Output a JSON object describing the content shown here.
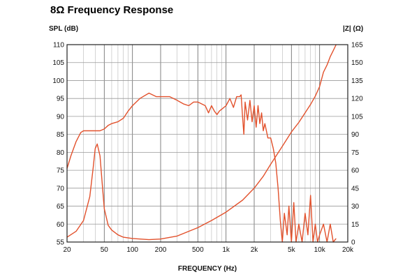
{
  "title": "8Ω Frequency Response",
  "chart_data": {
    "type": "line",
    "xlabel": "FREQUENCY (Hz)",
    "ylabel_left": "SPL (dB)",
    "ylabel_right": "|Z| (Ω)",
    "x_scale": "log",
    "xlim": [
      20,
      20000
    ],
    "ylim_left": [
      55,
      110
    ],
    "ylim_right": [
      0,
      165
    ],
    "grid": true,
    "x_ticks": [
      {
        "value": 20,
        "label": "20"
      },
      {
        "value": 50,
        "label": "50"
      },
      {
        "value": 100,
        "label": "100"
      },
      {
        "value": 200,
        "label": "200"
      },
      {
        "value": 500,
        "label": "500"
      },
      {
        "value": 1000,
        "label": "1k"
      },
      {
        "value": 2000,
        "label": "2k"
      },
      {
        "value": 5000,
        "label": "5k"
      },
      {
        "value": 10000,
        "label": "10k"
      },
      {
        "value": 20000,
        "label": "20k"
      }
    ],
    "y_ticks_left": [
      110,
      105,
      100,
      95,
      90,
      85,
      80,
      75,
      70,
      65,
      60,
      55
    ],
    "y_ticks_right": [
      165,
      150,
      135,
      120,
      105,
      90,
      75,
      60,
      45,
      30,
      15,
      0
    ],
    "color": "#e2512c",
    "series": [
      {
        "axis": "left",
        "x": [
          20,
          22,
          25,
          28,
          30,
          35,
          40,
          45,
          50,
          55,
          60,
          70,
          80,
          90,
          100,
          120,
          150,
          180,
          200,
          250,
          300,
          350,
          400,
          450,
          500,
          600,
          650,
          700,
          750,
          800,
          850,
          900,
          1000,
          1100,
          1200,
          1300,
          1400,
          1450,
          1500,
          1550,
          1600,
          1700,
          1800,
          1900,
          2000,
          2100,
          2200,
          2300,
          2400,
          2500,
          2600,
          2800,
          3000,
          3200,
          3400,
          3600,
          3800,
          4000,
          4200,
          4500,
          4700,
          5000,
          5300,
          5600,
          6000,
          6500,
          7000,
          7500,
          8000,
          8500,
          9000,
          9500,
          10000,
          11000,
          12000,
          13000,
          14000,
          15000
        ],
        "y": [
          75.5,
          79,
          83,
          85.5,
          86,
          86,
          86,
          86,
          86.5,
          87.5,
          88,
          88.5,
          89.5,
          91.5,
          93,
          95,
          96.5,
          95.5,
          95.5,
          95.5,
          94.5,
          93.5,
          93,
          94,
          94,
          93,
          91,
          93,
          91.5,
          90.5,
          91.5,
          92,
          93,
          95,
          92.5,
          95.5,
          95.5,
          96,
          90,
          85,
          94,
          89,
          94.5,
          88.5,
          93,
          87,
          93,
          88,
          91,
          86,
          88,
          84,
          84,
          81,
          77,
          70,
          61,
          55,
          63,
          57,
          65,
          55,
          66,
          55,
          60,
          55,
          63,
          57,
          68,
          55,
          60,
          55,
          57,
          60,
          55,
          60,
          55,
          56
        ]
      },
      {
        "axis": "right",
        "x": [
          20,
          25,
          30,
          35,
          38,
          40,
          42,
          45,
          48,
          50,
          55,
          60,
          70,
          80,
          100,
          150,
          200,
          300,
          500,
          700,
          1000,
          1500,
          2000,
          2500,
          3000,
          4000,
          5000,
          6000,
          7000,
          8000,
          9000,
          10000,
          11000,
          12000,
          13000,
          14000,
          15000
        ],
        "y": [
          4,
          9,
          18,
          38,
          62,
          78,
          82,
          72,
          45,
          28,
          14,
          10,
          6,
          4,
          3,
          2,
          2.5,
          5,
          12,
          18,
          25,
          35,
          45,
          55,
          65,
          80,
          92,
          100,
          108,
          115,
          122,
          130,
          142,
          148,
          155,
          160,
          165
        ]
      }
    ]
  }
}
